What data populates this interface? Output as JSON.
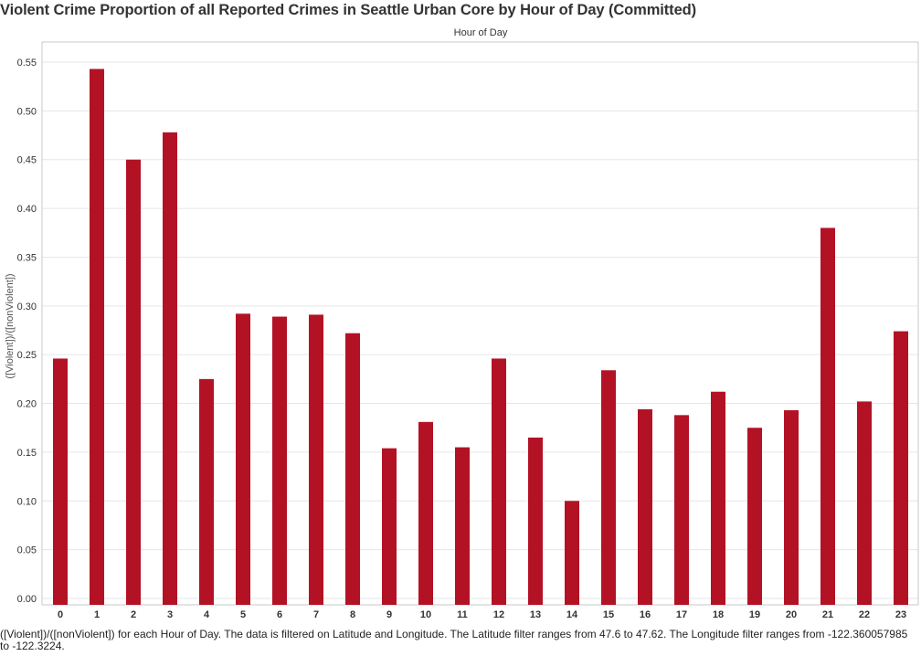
{
  "title": "Violent Crime Proportion of all Reported Crimes in Seattle Urban Core by Hour of Day (Committed)",
  "caption": "([Violent])/([nonViolent]) for each Hour of Day. The data is filtered on Latitude and Longitude. The Latitude filter ranges from 47.6 to 47.62. The Longitude filter ranges from -122.360057985 to -122.3224.",
  "colors": {
    "bar": "#b31225",
    "grid": "#e6e6e6",
    "axis": "#c8c8c8"
  },
  "chart_data": {
    "type": "bar",
    "title": "Violent Crime Proportion of all Reported Crimes in Seattle Urban Core by Hour of Day (Committed)",
    "xlabel": "Hour of Day",
    "ylabel": "([Violent])/([nonViolent])",
    "ylim": [
      0,
      0.55
    ],
    "yticks": [
      "0.00",
      "0.05",
      "0.10",
      "0.15",
      "0.20",
      "0.25",
      "0.30",
      "0.35",
      "0.40",
      "0.45",
      "0.50",
      "0.55"
    ],
    "grid": true,
    "categories": [
      "0",
      "1",
      "2",
      "3",
      "4",
      "5",
      "6",
      "7",
      "8",
      "9",
      "10",
      "11",
      "12",
      "13",
      "14",
      "15",
      "16",
      "17",
      "18",
      "19",
      "20",
      "21",
      "22",
      "23"
    ],
    "values": [
      0.246,
      0.543,
      0.45,
      0.478,
      0.225,
      0.292,
      0.289,
      0.291,
      0.272,
      0.154,
      0.181,
      0.155,
      0.246,
      0.165,
      0.1,
      0.234,
      0.194,
      0.188,
      0.212,
      0.175,
      0.193,
      0.38,
      0.202,
      0.274
    ]
  }
}
